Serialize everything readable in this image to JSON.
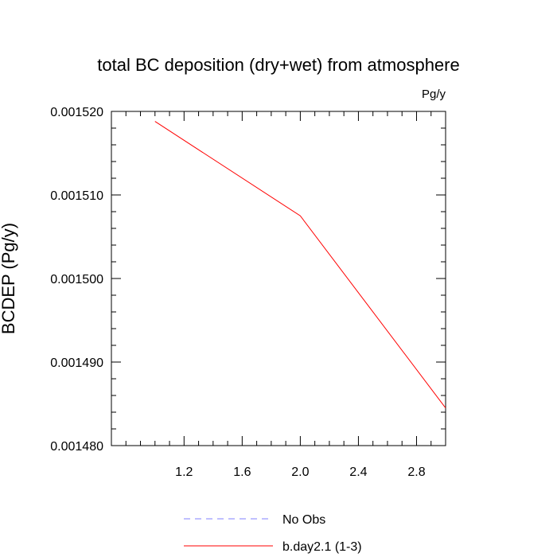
{
  "chart_data": {
    "type": "line",
    "title": "total BC deposition (dry+wet) from atmosphere",
    "units_label": "Pg/y",
    "xlabel": "",
    "ylabel": "BCDEP  (Pg/y)",
    "xlim": [
      0.7,
      3.0
    ],
    "ylim": [
      0.00148,
      0.00152
    ],
    "x_ticks": [
      1.2,
      1.6,
      2.0,
      2.4,
      2.8
    ],
    "x_tick_labels": [
      "1.2",
      "1.6",
      "2.0",
      "2.4",
      "2.8"
    ],
    "y_ticks": [
      0.00148,
      0.00149,
      0.0015,
      0.00151,
      0.00152
    ],
    "y_tick_labels": [
      "0.001480",
      "0.001490",
      "0.001500",
      "0.001510",
      "0.001520"
    ],
    "grid": false,
    "legend_position": "bottom",
    "series": [
      {
        "name": "b.day2.1 (1-3)",
        "color": "#ff0000",
        "dash": "solid",
        "x": [
          1.0,
          2.0,
          3.0
        ],
        "y": [
          0.0015188,
          0.0015075,
          0.0014845
        ]
      }
    ],
    "legend": [
      {
        "label": "No Obs",
        "color": "#8080ff",
        "dash": "dashed"
      },
      {
        "label": "b.day2.1 (1-3)",
        "color": "#ff0000",
        "dash": "solid"
      }
    ]
  }
}
